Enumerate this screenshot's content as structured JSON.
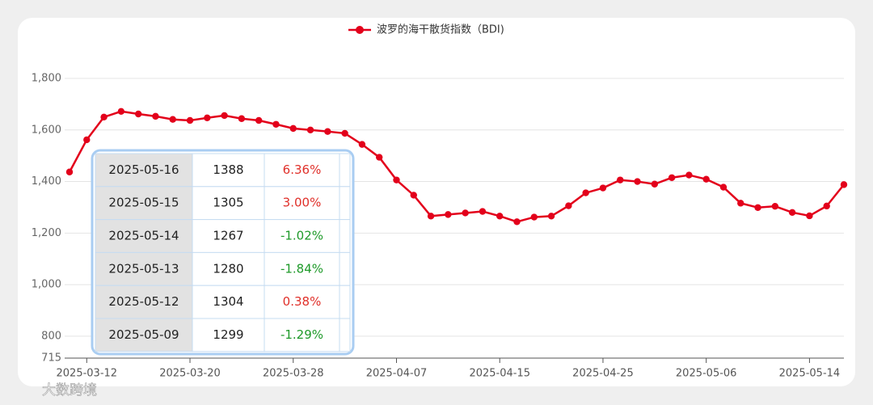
{
  "chart_data": {
    "type": "line",
    "title": "波罗的海干散货指数（BDI)",
    "categories": [
      null,
      "2025-03-12",
      null,
      null,
      null,
      null,
      null,
      "2025-03-20",
      null,
      null,
      null,
      null,
      null,
      "2025-03-28",
      null,
      null,
      null,
      null,
      null,
      "2025-04-07",
      null,
      null,
      null,
      null,
      null,
      "2025-04-15",
      null,
      null,
      null,
      null,
      null,
      "2025-04-25",
      null,
      null,
      null,
      null,
      null,
      "2025-05-06",
      null,
      null,
      null,
      null,
      null,
      "2025-05-14",
      null,
      null
    ],
    "series": [
      {
        "name": "波罗的海干散货指数（BDI)",
        "color": "#e3001b",
        "values": [
          1437,
          1562,
          1650,
          1672,
          1662,
          1653,
          1641,
          1637,
          1647,
          1656,
          1644,
          1637,
          1622,
          1606,
          1600,
          1594,
          1587,
          1544,
          1494,
          1406,
          1347,
          1266,
          1272,
          1278,
          1284,
          1266,
          1244,
          1262,
          1266,
          1306,
          1356,
          1375,
          1406,
          1400,
          1390,
          1415,
          1425,
          1409,
          1378,
          1316,
          1299,
          1304,
          1280,
          1267,
          1305,
          1388
        ]
      }
    ],
    "ylim": [
      715,
      1800
    ],
    "yticks": [
      715,
      800,
      {
        "value": 1000,
        "label": "1,000"
      },
      {
        "value": 1200,
        "label": "1,200"
      },
      {
        "value": 1400,
        "label": "1,400"
      },
      {
        "value": 1600,
        "label": "1,600"
      },
      {
        "value": 1800,
        "label": "1,800"
      }
    ],
    "grid": true
  },
  "table": {
    "up_color": "#e0302a",
    "down_color": "#1f9a2a",
    "rows": [
      [
        "2025-05-16",
        1388,
        "6.36%",
        6.36
      ],
      [
        "2025-05-15",
        1305,
        "3.00%",
        3.0
      ],
      [
        "2025-05-14",
        1267,
        "-1.02%",
        -1.02
      ],
      [
        "2025-05-13",
        1280,
        "-1.84%",
        -1.84
      ],
      [
        "2025-05-12",
        1304,
        "0.38%",
        0.38
      ],
      [
        "2025-05-09",
        1299,
        "-1.29%",
        -1.29
      ]
    ]
  },
  "watermark": "大数跨境"
}
